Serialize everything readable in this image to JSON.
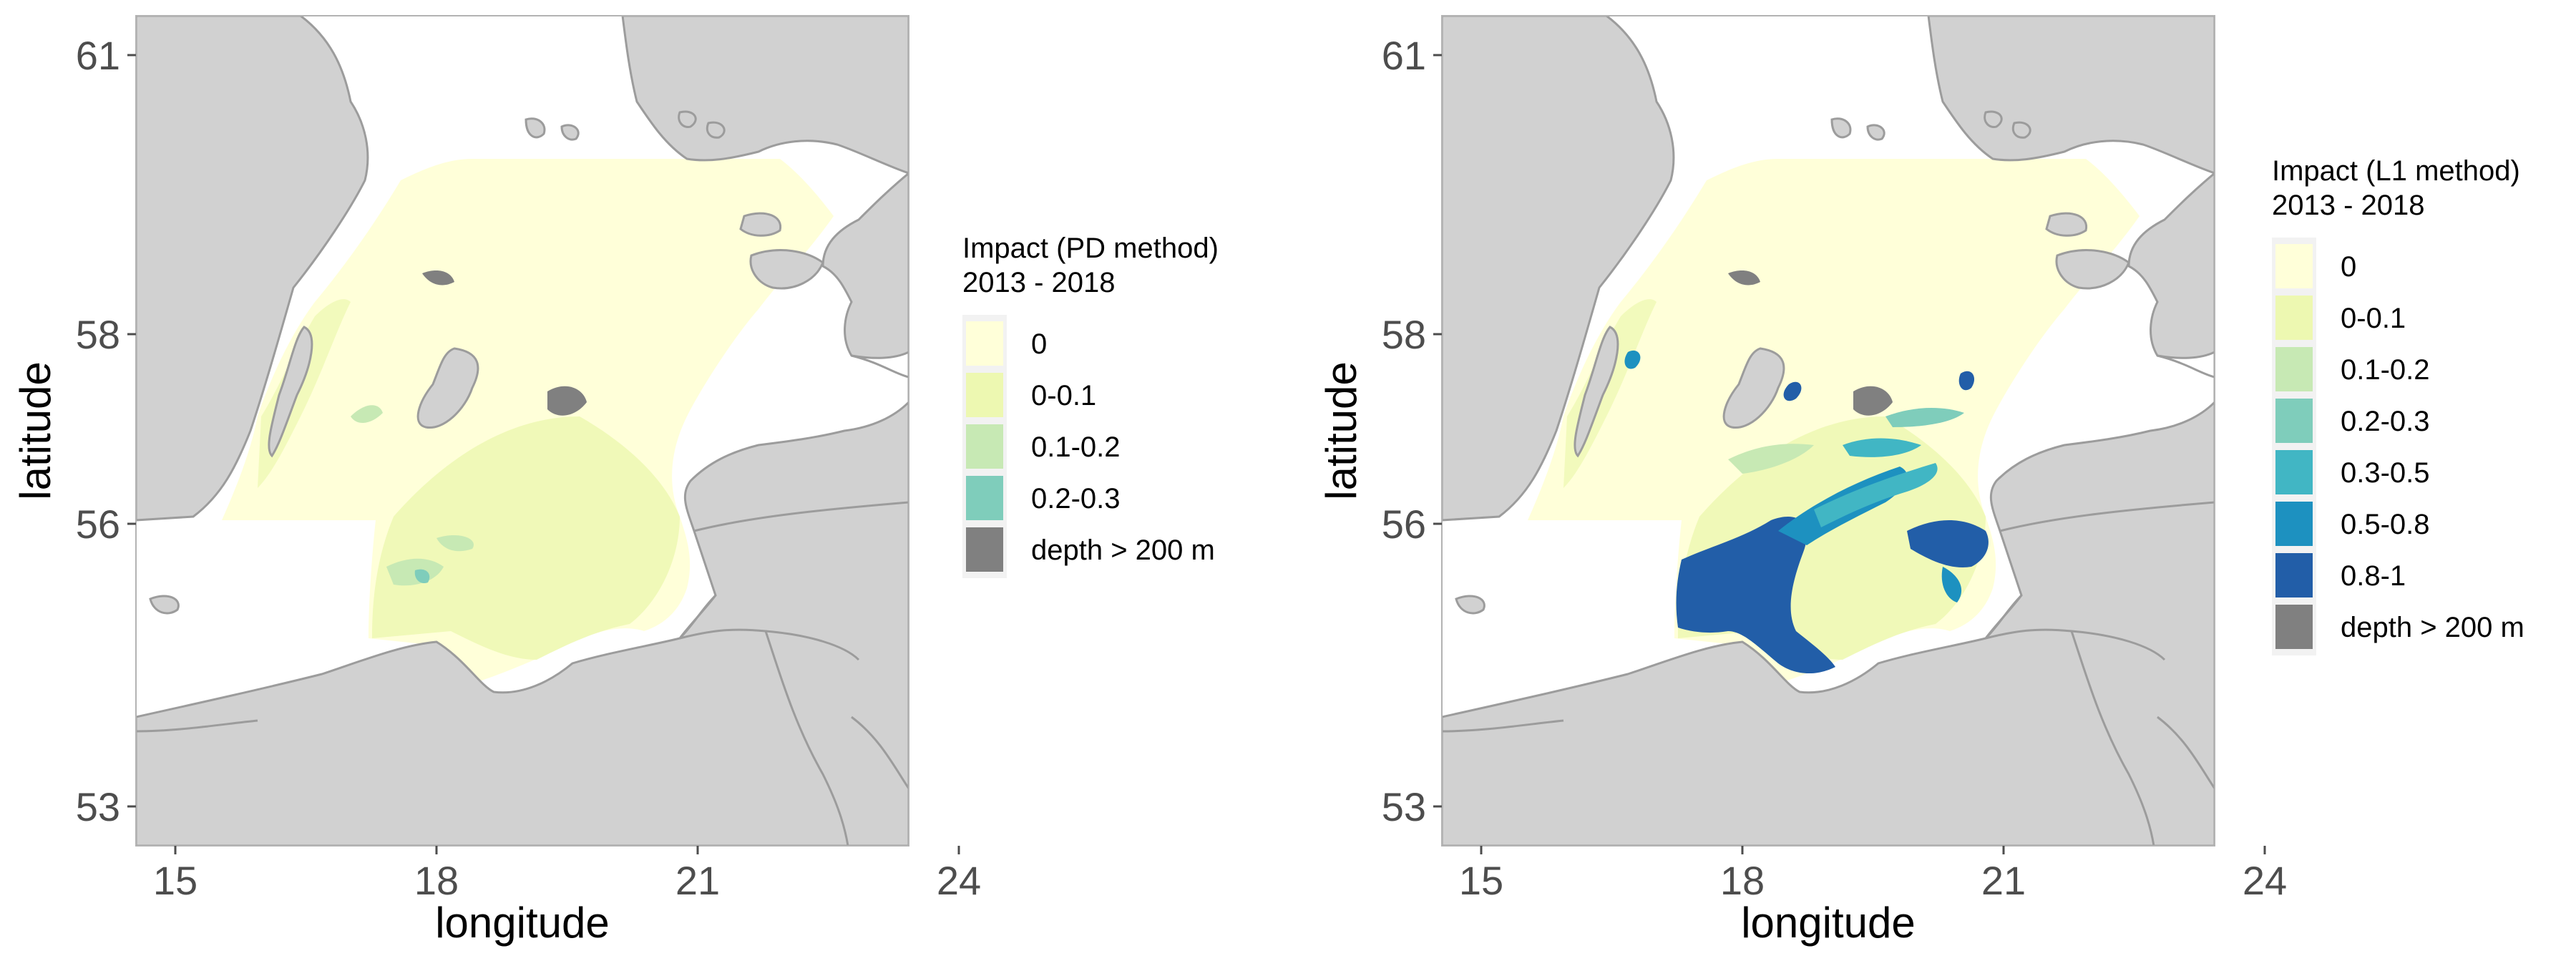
{
  "colors": {
    "land": "#d1d1d1",
    "coast": "#9c9c9c",
    "sea": "#ffffff",
    "panel_border": "#b3b3b3",
    "tick": "#4d4d4d",
    "c0": "#ffffd9",
    "c1": "#edf8b1",
    "c2": "#c7e9b4",
    "c3": "#7fcdbb",
    "c4": "#41b6c4",
    "c5": "#1d91c0",
    "c6": "#225ea8",
    "deep": "#808080",
    "legend_bg": "#f2f2f2"
  },
  "axes": {
    "x_ticks": [
      "15",
      "18",
      "21",
      "24"
    ],
    "y_ticks": [
      "61",
      "58",
      "56",
      "53"
    ],
    "xlabel": "longitude",
    "ylabel": "latitude"
  },
  "maps": [
    {
      "legend_title_line1": "Impact (PD method)",
      "legend_title_line2": " 2013 - 2018",
      "legend": [
        {
          "label": "0",
          "color": "c0"
        },
        {
          "label": "0-0.1",
          "color": "c1"
        },
        {
          "label": "0.1-0.2",
          "color": "c2"
        },
        {
          "label": "0.2-0.3",
          "color": "c3"
        },
        {
          "label": "depth > 200 m",
          "color": "deep"
        }
      ]
    },
    {
      "legend_title_line1": "Impact (L1 method)",
      "legend_title_line2": " 2013 - 2018",
      "legend": [
        {
          "label": "0",
          "color": "c0"
        },
        {
          "label": "0-0.1",
          "color": "c1"
        },
        {
          "label": "0.1-0.2",
          "color": "c2"
        },
        {
          "label": "0.2-0.3",
          "color": "c3"
        },
        {
          "label": "0.3-0.5",
          "color": "c4"
        },
        {
          "label": "0.5-0.8",
          "color": "c5"
        },
        {
          "label": "0.8-1",
          "color": "c6"
        },
        {
          "label": "depth > 200 m",
          "color": "deep"
        }
      ]
    }
  ]
}
